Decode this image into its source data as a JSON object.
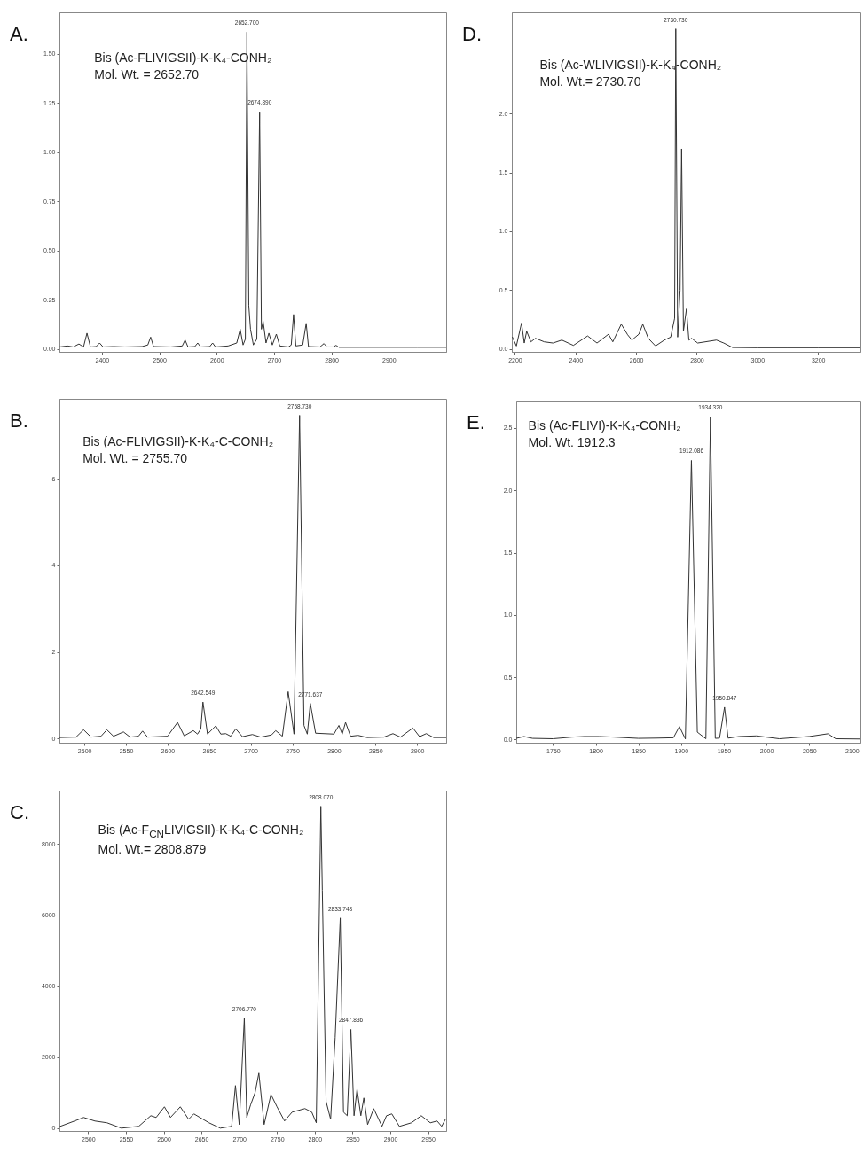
{
  "chart_data": [
    {
      "type": "line",
      "title": "A.",
      "annotations": [
        "Bis (Ac-FLIVIGSII)-K-K₄-CONH₂",
        "Mol. Wt. = 2652.70",
        {
          "text": "2652.700",
          "x": 2652.7,
          "y": 1.61
        },
        {
          "text": "2674.890",
          "x": 2674.9,
          "y": 1.205
        }
      ],
      "color": "#333333",
      "x": [
        2326,
        2340,
        2350,
        2360,
        2368,
        2374,
        2380,
        2390,
        2396,
        2402,
        2420,
        2440,
        2470,
        2480,
        2485,
        2490,
        2520,
        2540,
        2545,
        2550,
        2562,
        2567,
        2572,
        2588,
        2593,
        2598,
        2620,
        2635,
        2641,
        2646,
        2650,
        2652.7,
        2656,
        2659,
        2664,
        2670,
        2674.9,
        2678,
        2681,
        2686,
        2691,
        2697,
        2704,
        2710,
        2725,
        2730,
        2734,
        2738,
        2750,
        2756,
        2760,
        2780,
        2787,
        2792,
        2803,
        2808,
        2813,
        2850,
        2900,
        2950,
        3000
      ],
      "values": [
        0.01,
        0.015,
        0.01,
        0.025,
        0.01,
        0.08,
        0.01,
        0.012,
        0.03,
        0.01,
        0.012,
        0.01,
        0.012,
        0.02,
        0.06,
        0.012,
        0.01,
        0.015,
        0.045,
        0.01,
        0.012,
        0.03,
        0.01,
        0.012,
        0.03,
        0.01,
        0.015,
        0.03,
        0.1,
        0.02,
        0.05,
        1.61,
        0.22,
        0.1,
        0.02,
        0.05,
        1.205,
        0.1,
        0.14,
        0.03,
        0.08,
        0.02,
        0.075,
        0.015,
        0.01,
        0.02,
        0.175,
        0.015,
        0.02,
        0.13,
        0.012,
        0.01,
        0.027,
        0.01,
        0.01,
        0.018,
        0.008,
        0.008,
        0.008,
        0.008,
        0.008
      ],
      "xlim": [
        2326,
        3000
      ],
      "ylim": [
        -0.015,
        1.71
      ],
      "xticks": [
        2400,
        2500,
        2600,
        2700,
        2800,
        2900
      ],
      "yticks": [
        {
          "value": 0,
          "label": "0.00"
        },
        {
          "value": 0.25,
          "label": "0.25"
        },
        {
          "value": 0.5,
          "label": "0.50"
        },
        {
          "value": 0.75,
          "label": "0.75"
        },
        {
          "value": 1,
          "label": "1.00"
        },
        {
          "value": 1.25,
          "label": "1.25"
        },
        {
          "value": 1.5,
          "label": "1.50"
        }
      ]
    },
    {
      "type": "line",
      "title": "D.",
      "annotations": [
        "Bis (Ac-WLIVIGSII)-K-K₄-CONH₂",
        "Mol. Wt.= 2730.70",
        {
          "text": "2730.730",
          "x": 2730.73,
          "y": 2.72
        }
      ],
      "color": "#333333",
      "x": [
        2192,
        2205,
        2222,
        2231,
        2239,
        2253,
        2268,
        2297,
        2326,
        2355,
        2393,
        2440,
        2471,
        2509,
        2523,
        2551,
        2572,
        2586,
        2609,
        2622,
        2640,
        2664,
        2693,
        2714,
        2727,
        2730.73,
        2737,
        2745,
        2750,
        2756,
        2766,
        2774,
        2783,
        2803,
        2865,
        2889,
        2918,
        3000,
        3100,
        3200,
        3340
      ],
      "values": [
        0.1,
        0.025,
        0.22,
        0.05,
        0.15,
        0.06,
        0.09,
        0.06,
        0.05,
        0.075,
        0.03,
        0.11,
        0.05,
        0.125,
        0.06,
        0.21,
        0.12,
        0.075,
        0.125,
        0.21,
        0.09,
        0.025,
        0.075,
        0.1,
        0.26,
        2.72,
        0.1,
        0.5,
        1.7,
        0.15,
        0.34,
        0.075,
        0.09,
        0.05,
        0.075,
        0.05,
        0.012,
        0.01,
        0.01,
        0.01,
        0.01
      ],
      "xlim": [
        2190,
        3340
      ],
      "ylim": [
        -0.025,
        2.86
      ],
      "xticks": [
        2200,
        2400,
        2600,
        2800,
        3000,
        3200
      ],
      "yticks": [
        {
          "value": 0,
          "label": "0.0"
        },
        {
          "value": 0.5,
          "label": "0.5"
        },
        {
          "value": 1,
          "label": "1.0"
        },
        {
          "value": 1.5,
          "label": "1.5"
        },
        {
          "value": 2,
          "label": "2.0"
        }
      ]
    },
    {
      "type": "line",
      "title": "B.",
      "annotations": [
        "Bis (Ac-FLIVIGSII)-K-K₄-C-CONH₂",
        "Mol. Wt. = 2755.70",
        {
          "text": "2642.549",
          "x": 2642.549,
          "y": 0.84
        },
        {
          "text": "2758.730",
          "x": 2758.73,
          "y": 7.47
        },
        {
          "text": "2771.637",
          "x": 2771.637,
          "y": 0.81
        }
      ],
      "color": "#333333",
      "x": [
        2470,
        2490,
        2499,
        2508,
        2520,
        2527,
        2535,
        2547,
        2555,
        2565,
        2570,
        2576,
        2600,
        2612,
        2620,
        2631,
        2636,
        2640,
        2642.549,
        2648,
        2658,
        2664,
        2670,
        2676,
        2682,
        2690,
        2702,
        2712,
        2725,
        2730,
        2738,
        2745,
        2752,
        2758.73,
        2764,
        2768,
        2771.637,
        2778,
        2800,
        2806,
        2810,
        2814,
        2820,
        2829,
        2840,
        2860,
        2871,
        2880,
        2895,
        2903,
        2911,
        2920,
        2935
      ],
      "values": [
        0.02,
        0.03,
        0.2,
        0.03,
        0.05,
        0.2,
        0.05,
        0.15,
        0.03,
        0.05,
        0.17,
        0.03,
        0.05,
        0.37,
        0.06,
        0.18,
        0.1,
        0.22,
        0.84,
        0.1,
        0.29,
        0.1,
        0.11,
        0.05,
        0.22,
        0.04,
        0.09,
        0.03,
        0.08,
        0.18,
        0.05,
        1.08,
        0.1,
        7.47,
        0.3,
        0.1,
        0.81,
        0.12,
        0.1,
        0.3,
        0.1,
        0.37,
        0.05,
        0.07,
        0.02,
        0.03,
        0.11,
        0.03,
        0.24,
        0.04,
        0.11,
        0.02,
        0.02
      ],
      "xlim": [
        2470,
        2935
      ],
      "ylim": [
        -0.1,
        7.85
      ],
      "xticks": [
        2500,
        2550,
        2600,
        2650,
        2700,
        2750,
        2800,
        2850,
        2900
      ],
      "yticks": [
        0,
        2,
        4,
        6
      ]
    },
    {
      "type": "line",
      "title": "E.",
      "annotations": [
        "Bis (Ac-FLIVI)-K-K₄-CONH₂",
        "Mol. Wt. 1912.3",
        {
          "text": "1912.086",
          "x": 1912.086,
          "y": 2.24
        },
        {
          "text": "1934.320",
          "x": 1934.32,
          "y": 2.59
        },
        {
          "text": "1950.847",
          "x": 1950.847,
          "y": 0.26
        }
      ],
      "color": "#333333",
      "x": [
        1707,
        1716,
        1726,
        1750,
        1772,
        1787,
        1804,
        1822,
        1850,
        1871,
        1891,
        1898,
        1905,
        1912.086,
        1919,
        1929,
        1934.32,
        1940,
        1945,
        1950.847,
        1955,
        1968,
        1988,
        2015,
        2050,
        2072,
        2081,
        2110
      ],
      "values": [
        0.01,
        0.025,
        0.01,
        0.007,
        0.02,
        0.025,
        0.025,
        0.02,
        0.01,
        0.012,
        0.015,
        0.105,
        0.005,
        2.24,
        0.06,
        0.007,
        2.59,
        0.01,
        0.012,
        0.26,
        0.012,
        0.025,
        0.03,
        0.007,
        0.025,
        0.047,
        0.007,
        0.005
      ],
      "xlim": [
        1707,
        2110
      ],
      "ylim": [
        -0.025,
        2.72
      ],
      "xticks": [
        1750,
        1800,
        1850,
        1900,
        1950,
        2000,
        2050,
        2100
      ],
      "yticks": [
        {
          "value": 0,
          "label": "0.0"
        },
        {
          "value": 0.5,
          "label": "0.5"
        },
        {
          "value": 1,
          "label": "1.0"
        },
        {
          "value": 1.5,
          "label": "1.5"
        },
        {
          "value": 2,
          "label": "2.0"
        },
        {
          "value": 2.5,
          "label": "2.5"
        }
      ]
    },
    {
      "type": "line",
      "title": "C.",
      "annotations": [
        "Bis (Ac-F$_{CN}$LIVIGSII)-K-K₄-C-CONH₂",
        "Mol. Wt.= 2808.879",
        {
          "text": "2706.770",
          "x": 2706.77,
          "y": 3100
        },
        {
          "text": "2808.070",
          "x": 2808.07,
          "y": 9070
        },
        {
          "text": "2833.748",
          "x": 2833.748,
          "y": 5920
        },
        {
          "text": "2847.836",
          "x": 2847.836,
          "y": 2780
        }
      ],
      "color": "#333333",
      "x": [
        2463,
        2482,
        2494,
        2509,
        2525,
        2544,
        2567,
        2583,
        2590,
        2601,
        2609,
        2622,
        2633,
        2640,
        2660,
        2675,
        2690,
        2695,
        2700,
        2706.77,
        2710,
        2715,
        2721,
        2726,
        2733,
        2742,
        2750,
        2760,
        2770,
        2787,
        2796,
        2802,
        2808.07,
        2810,
        2815,
        2821,
        2827,
        2833.748,
        2838,
        2843,
        2847.836,
        2852,
        2856,
        2861,
        2865,
        2870,
        2878,
        2889,
        2895,
        2902,
        2912,
        2928,
        2941,
        2953,
        2962,
        2968,
        2973
      ],
      "values": [
        50,
        200,
        300,
        200,
        150,
        0,
        50,
        350,
        300,
        600,
        300,
        600,
        250,
        400,
        150,
        0,
        50,
        1200,
        100,
        3100,
        300,
        650,
        1000,
        1550,
        100,
        950,
        600,
        200,
        450,
        550,
        450,
        150,
        9070,
        6700,
        750,
        250,
        2550,
        5920,
        450,
        350,
        2780,
        350,
        1100,
        350,
        850,
        100,
        550,
        50,
        350,
        400,
        50,
        150,
        350,
        150,
        200,
        50,
        250
      ],
      "xlim": [
        2462,
        2974
      ],
      "ylim": [
        -80,
        9510
      ],
      "xticks": [
        2500,
        2550,
        2600,
        2650,
        2700,
        2750,
        2800,
        2850,
        2900,
        2950
      ],
      "yticks": [
        0,
        2000,
        4000,
        6000,
        8000
      ]
    }
  ]
}
